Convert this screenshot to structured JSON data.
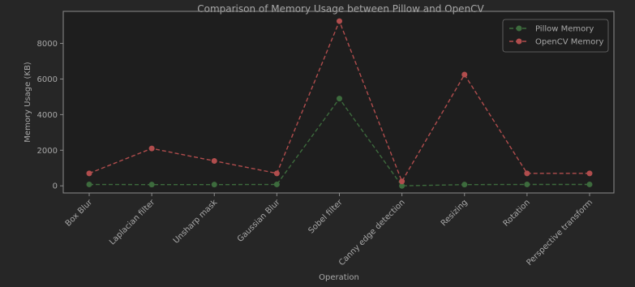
{
  "chart_data": {
    "type": "line",
    "title": "Comparison of Memory Usage between Pillow and OpenCV",
    "xlabel": "Operation",
    "ylabel": "Memory Usage (KB)",
    "categories": [
      "Box Blur",
      "Laplacian filter",
      "Unsharp mask",
      "Gaussian Blur",
      "Sobel filter",
      "Canny edge detection",
      "Resizing",
      "Rotation",
      "Perspective transform"
    ],
    "yticks": [
      0,
      2000,
      4000,
      6000,
      8000
    ],
    "ylim": [
      -400,
      9800
    ],
    "grid": false,
    "legend_position": "top-right",
    "series": [
      {
        "name": "Pillow Memory",
        "color": "#3d6b3d",
        "values": [
          80,
          70,
          70,
          80,
          4900,
          0,
          70,
          80,
          80
        ]
      },
      {
        "name": "OpenCV Memory",
        "color": "#b14d4d",
        "values": [
          700,
          2100,
          1400,
          700,
          9250,
          250,
          6250,
          700,
          700
        ]
      }
    ],
    "colors": {
      "background": "#262626",
      "plot_background": "#1e1e1e",
      "text": "#a8a8a8",
      "axis": "#8c8c8c"
    }
  }
}
